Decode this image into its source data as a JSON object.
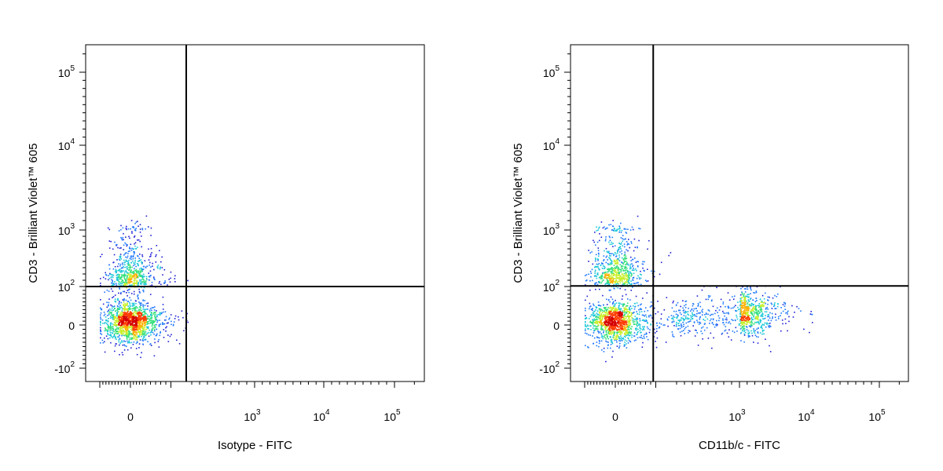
{
  "chart_data": [
    {
      "type": "scatter",
      "subtype": "flow-cytometry-density-plot",
      "xlabel": "Isotype - FITC",
      "ylabel": "CD3 - Brilliant Violet™ 605",
      "xscale": "biexponential",
      "yscale": "biexponential",
      "xlim": [
        -100,
        250000
      ],
      "ylim": [
        -180,
        250000
      ],
      "x_ticks": [
        {
          "value": 0,
          "base": "0",
          "exp": ""
        },
        {
          "value": 1000,
          "base": "10",
          "exp": "3"
        },
        {
          "value": 10000,
          "base": "10",
          "exp": "4"
        },
        {
          "value": 100000,
          "base": "10",
          "exp": "5"
        }
      ],
      "y_ticks": [
        {
          "value": 100000,
          "base": "10",
          "exp": "5"
        },
        {
          "value": 10000,
          "base": "10",
          "exp": "4"
        },
        {
          "value": 1000,
          "base": "10",
          "exp": "3"
        },
        {
          "value": 100,
          "base": "10",
          "exp": "2"
        },
        {
          "value": 0,
          "base": "0",
          "exp": ""
        },
        {
          "value": -100,
          "base": "-10",
          "exp": "2"
        }
      ],
      "quadrant_gate": {
        "x": 130,
        "y": 100
      },
      "populations": [
        {
          "x": 0,
          "y": 10,
          "count": 1400,
          "spread_x": 45,
          "spread_y": 25,
          "peak": "red"
        },
        {
          "x": 0,
          "y": 300,
          "count": 650,
          "spread_x": 40,
          "spread_y": 0.28,
          "peak": "green"
        }
      ],
      "grid": false,
      "colormap": [
        "#1f1fd6",
        "#1e78ff",
        "#19c7d8",
        "#32e07a",
        "#c8ef2a",
        "#ffb000",
        "#ff3b00",
        "#d40000"
      ]
    },
    {
      "type": "scatter",
      "subtype": "flow-cytometry-density-plot",
      "xlabel": "CD11b/c - FITC",
      "ylabel": "CD3 - Brilliant Violet™ 605",
      "xscale": "biexponential",
      "yscale": "biexponential",
      "xlim": [
        -100,
        250000
      ],
      "ylim": [
        -180,
        250000
      ],
      "x_ticks": [
        {
          "value": 0,
          "base": "0",
          "exp": ""
        },
        {
          "value": 1000,
          "base": "10",
          "exp": "3"
        },
        {
          "value": 10000,
          "base": "10",
          "exp": "4"
        },
        {
          "value": 100000,
          "base": "10",
          "exp": "5"
        }
      ],
      "y_ticks": [
        {
          "value": 100000,
          "base": "10",
          "exp": "5"
        },
        {
          "value": 10000,
          "base": "10",
          "exp": "4"
        },
        {
          "value": 1000,
          "base": "10",
          "exp": "3"
        },
        {
          "value": 100,
          "base": "10",
          "exp": "2"
        },
        {
          "value": 0,
          "base": "0",
          "exp": ""
        },
        {
          "value": -100,
          "base": "-10",
          "exp": "2"
        }
      ],
      "quadrant_gate": {
        "x": 95,
        "y": 110
      },
      "populations": [
        {
          "x": 0,
          "y": 10,
          "count": 1200,
          "spread_x": 45,
          "spread_y": 25,
          "peak": "red"
        },
        {
          "x": 0,
          "y": 350,
          "count": 700,
          "spread_x": 40,
          "spread_y": 0.28,
          "peak": "green"
        },
        {
          "x": 2000,
          "y": 30,
          "count": 650,
          "spread_x": 0.3,
          "spread_y": 30,
          "peak": "cyan"
        },
        {
          "x": 400,
          "y": 20,
          "count": 250,
          "spread_x": 0.35,
          "spread_y": 25,
          "peak": "blue"
        }
      ],
      "grid": false,
      "colormap": [
        "#1f1fd6",
        "#1e78ff",
        "#19c7d8",
        "#32e07a",
        "#c8ef2a",
        "#ffb000",
        "#ff3b00",
        "#d40000"
      ]
    }
  ]
}
